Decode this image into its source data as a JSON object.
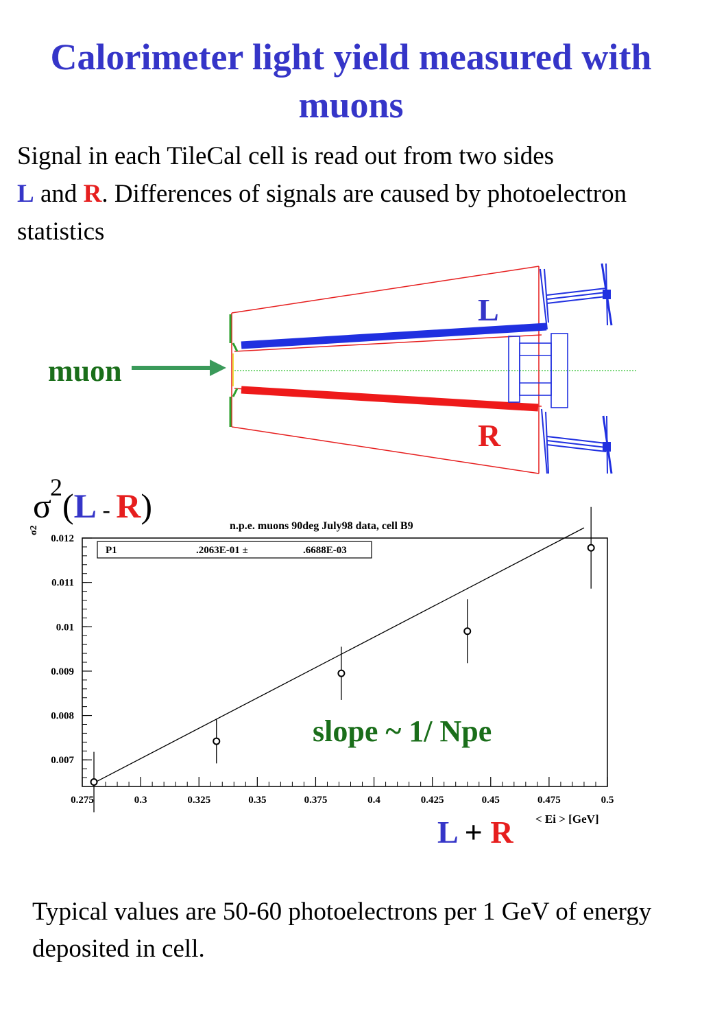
{
  "title": "Calorimeter light yield measured with muons",
  "intro": {
    "line1": "Signal in each TileCal cell is read out from two sides",
    "L": "L",
    "and": " and ",
    "R": "R",
    "rest": ". Differences of signals are caused by photoelectron statistics"
  },
  "diagram": {
    "muon_label": "muon",
    "L_label": "L",
    "R_label": "R"
  },
  "sigma_label": {
    "sigma": "σ",
    "power": "2",
    "open": "(",
    "L": "L",
    "minus": " - ",
    "R": "R",
    "close": ")"
  },
  "plot_labels": {
    "slope_note": "slope ~ 1/ Npe",
    "xsum_L": "L",
    "xsum_plus": " + ",
    "xsum_R": "R",
    "x_unit": "< Ei > [GeV]"
  },
  "chart_data": {
    "type": "scatter",
    "title": "n.p.e.  muons 90deg July98 data, cell B9",
    "ylabel": "σ2",
    "xlabel": "< Ei > [GeV]",
    "xlim": [
      0.275,
      0.5
    ],
    "ylim": [
      0.0064,
      0.012
    ],
    "x_ticks": [
      "0.275",
      "0.3",
      "0.325",
      "0.35",
      "0.375",
      "0.4",
      "0.425",
      "0.45",
      "0.475",
      "0.5"
    ],
    "y_ticks": [
      "0.007",
      "0.008",
      "0.009",
      "0.01",
      "0.011",
      "0.012"
    ],
    "fit_box": {
      "param": "P1",
      "value": ".2063E-01 ±",
      "error": ".6688E-03"
    },
    "points": [
      {
        "x": 0.28,
        "y": 0.0065,
        "err": 0.00068
      },
      {
        "x": 0.3325,
        "y": 0.00742,
        "err": 0.0005
      },
      {
        "x": 0.386,
        "y": 0.00895,
        "err": 0.0006
      },
      {
        "x": 0.44,
        "y": 0.0099,
        "err": 0.00072
      },
      {
        "x": 0.493,
        "y": 0.01178,
        "err": 0.00092
      }
    ],
    "fit_line": [
      {
        "x": 0.28,
        "y": 0.00648
      },
      {
        "x": 0.49,
        "y": 0.01223
      }
    ],
    "grid": false,
    "legend": "top-left"
  },
  "outro": "Typical values are 50-60 photoelectrons per 1 GeV of energy deposited in cell."
}
